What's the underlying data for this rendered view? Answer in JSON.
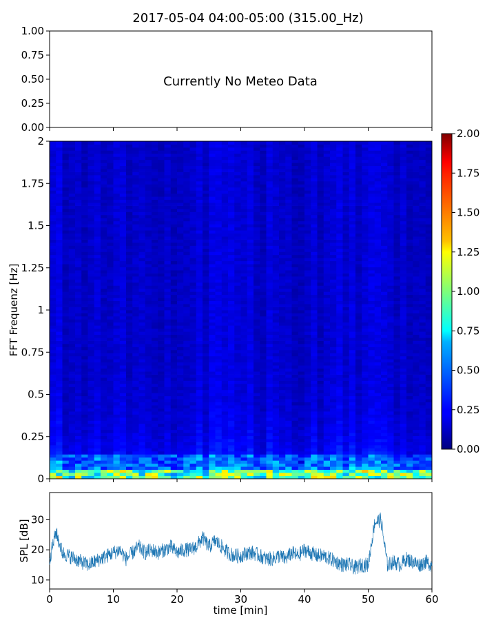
{
  "title": "2017-05-04 04:00-05:00 (315.00_Hz)",
  "chart_data": [
    {
      "type": "text-panel",
      "name": "meteo",
      "message": "Currently No Meteo Data",
      "ylim": [
        0,
        1
      ],
      "yticks": [
        "0.00",
        "0.25",
        "0.50",
        "0.75",
        "1.00"
      ]
    },
    {
      "type": "heatmap",
      "name": "spectrogram",
      "ylabel": "FFT Frequenz [Hz]",
      "xlim": [
        0,
        60
      ],
      "ylim": [
        0,
        2
      ],
      "yticks": [
        "0",
        "0.25",
        "0.5",
        "0.75",
        "1",
        "1.25",
        "1.5",
        "1.75",
        "2"
      ],
      "colormap": "jet",
      "colorbar": {
        "range": [
          0,
          2
        ],
        "ticks": [
          "0.00",
          "0.25",
          "0.50",
          "0.75",
          "1.00",
          "1.25",
          "1.50",
          "1.75",
          "2.00"
        ]
      }
    },
    {
      "type": "line",
      "name": "spl",
      "xlabel": "time [min]",
      "ylabel": "SPL [dB]",
      "xlim": [
        0,
        60
      ],
      "ylim": [
        7,
        39
      ],
      "xticks": [
        "0",
        "10",
        "20",
        "30",
        "40",
        "50",
        "60"
      ],
      "yticks": [
        "10",
        "20",
        "30"
      ],
      "color": "#1f77b4",
      "x": [
        0,
        1,
        2,
        3,
        4,
        5,
        6,
        7,
        8,
        9,
        10,
        11,
        12,
        13,
        14,
        15,
        16,
        17,
        18,
        19,
        20,
        21,
        22,
        23,
        24,
        25,
        26,
        27,
        28,
        29,
        30,
        31,
        32,
        33,
        34,
        35,
        36,
        37,
        38,
        39,
        40,
        41,
        42,
        43,
        44,
        45,
        46,
        47,
        48,
        49,
        50,
        51,
        52,
        53,
        54,
        55,
        56,
        57,
        58,
        59,
        60
      ],
      "y": [
        17,
        26,
        19,
        18,
        17,
        16,
        15,
        16,
        17,
        18,
        19,
        20,
        17,
        19,
        21,
        19,
        20,
        19,
        20,
        21,
        19,
        20,
        20,
        21,
        24,
        21,
        23,
        21,
        19,
        18,
        18,
        19,
        19,
        18,
        17,
        17,
        18,
        17,
        19,
        18,
        20,
        19,
        18,
        18,
        17,
        16,
        15,
        15,
        14,
        15,
        15,
        29,
        30,
        15,
        16,
        15,
        17,
        16,
        15,
        16,
        15
      ]
    }
  ]
}
